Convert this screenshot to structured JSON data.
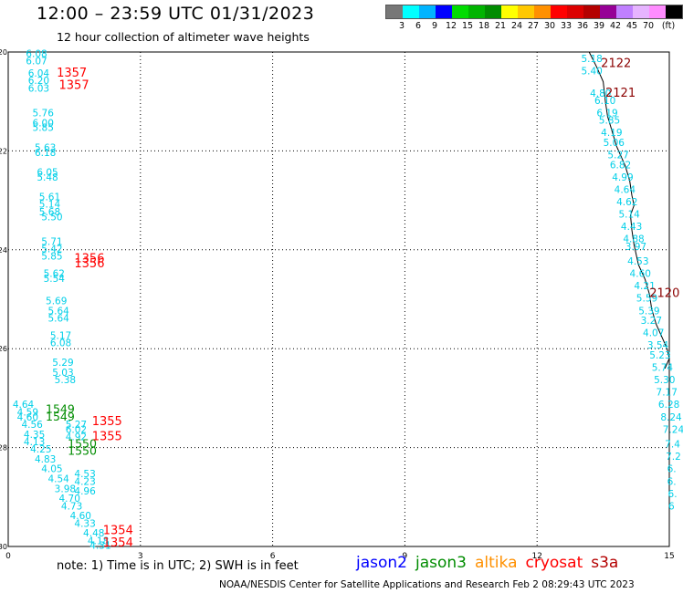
{
  "title": "12:00 – 23:59 UTC 01/31/2023",
  "subtitle": "12 hour collection of altimeter wave heights",
  "legend": {
    "colors": [
      "#777777",
      "#00ffff",
      "#00b4ff",
      "#0000ff",
      "#00dc00",
      "#00b400",
      "#008c00",
      "#ffff00",
      "#ffc800",
      "#ff9000",
      "#ff0000",
      "#dc0000",
      "#b40000",
      "#960096",
      "#c080ff",
      "#e6b4ff",
      "#ff8cff",
      "#000000"
    ],
    "labels": [
      "3",
      "6",
      "9",
      "12",
      "15",
      "18",
      "21",
      "24",
      "27",
      "30",
      "33",
      "36",
      "39",
      "42",
      "45",
      "70",
      "(ft)"
    ]
  },
  "axes": {
    "x_ticks": [
      "0",
      "3",
      "6",
      "9",
      "12",
      "15"
    ],
    "y_ticks": [
      "-20",
      "-22",
      "-24",
      "-26",
      "-28",
      "-30"
    ],
    "x_range": [
      0,
      15
    ],
    "y_range": [
      -20,
      -30
    ]
  },
  "track_labels": [
    {
      "text": "1357",
      "x": 1.1,
      "y": -20.5
    },
    {
      "text": "1357",
      "x": 1.15,
      "y": -20.75
    },
    {
      "text": "1356",
      "x": 1.5,
      "y": -24.25
    },
    {
      "text": "1356",
      "x": 1.5,
      "y": -24.35
    },
    {
      "text": "1355",
      "x": 1.9,
      "y": -27.55
    },
    {
      "text": "1355",
      "x": 1.9,
      "y": -27.85
    },
    {
      "text": "1354",
      "x": 2.15,
      "y": -29.75
    },
    {
      "text": "1354",
      "x": 2.15,
      "y": -30.0
    },
    {
      "text": "2122",
      "x": 13.45,
      "y": -20.3
    },
    {
      "text": "2121",
      "x": 13.55,
      "y": -20.9
    },
    {
      "text": "2120",
      "x": 14.55,
      "y": -24.95
    }
  ],
  "green_labels": [
    {
      "text": "1549",
      "x": 0.85,
      "y": -27.3
    },
    {
      "text": "1549",
      "x": 0.85,
      "y": -27.45
    },
    {
      "text": "1550",
      "x": 1.35,
      "y": -28.0
    },
    {
      "text": "1550",
      "x": 1.35,
      "y": -28.15
    }
  ],
  "swh_values": [
    {
      "text": "6.08",
      "x": 0.4,
      "y": -20.1
    },
    {
      "text": "6.07",
      "x": 0.4,
      "y": -20.25
    },
    {
      "text": "6.04",
      "x": 0.45,
      "y": -20.5
    },
    {
      "text": "6.20",
      "x": 0.45,
      "y": -20.65
    },
    {
      "text": "6.03",
      "x": 0.45,
      "y": -20.8
    },
    {
      "text": "5.76",
      "x": 0.55,
      "y": -21.3
    },
    {
      "text": "6.00",
      "x": 0.55,
      "y": -21.5
    },
    {
      "text": "5.85",
      "x": 0.55,
      "y": -21.6
    },
    {
      "text": "5.63",
      "x": 0.6,
      "y": -22.0
    },
    {
      "text": "6.18",
      "x": 0.6,
      "y": -22.1
    },
    {
      "text": "6.05",
      "x": 0.65,
      "y": -22.5
    },
    {
      "text": "5.48",
      "x": 0.65,
      "y": -22.6
    },
    {
      "text": "5.61",
      "x": 0.7,
      "y": -23.0
    },
    {
      "text": "5.14",
      "x": 0.7,
      "y": -23.15
    },
    {
      "text": "5.68",
      "x": 0.7,
      "y": -23.3
    },
    {
      "text": "5.50",
      "x": 0.75,
      "y": -23.4
    },
    {
      "text": "5.71",
      "x": 0.75,
      "y": -23.9
    },
    {
      "text": "5.42",
      "x": 0.75,
      "y": -24.05
    },
    {
      "text": "5.85",
      "x": 0.75,
      "y": -24.2
    },
    {
      "text": "5.62",
      "x": 0.8,
      "y": -24.55
    },
    {
      "text": "5.54",
      "x": 0.8,
      "y": -24.65
    },
    {
      "text": "5.69",
      "x": 0.85,
      "y": -25.1
    },
    {
      "text": "5.64",
      "x": 0.9,
      "y": -25.3
    },
    {
      "text": "5.64",
      "x": 0.9,
      "y": -25.45
    },
    {
      "text": "5.17",
      "x": 0.95,
      "y": -25.8
    },
    {
      "text": "6.08",
      "x": 0.95,
      "y": -25.95
    },
    {
      "text": "5.29",
      "x": 1.0,
      "y": -26.35
    },
    {
      "text": "5.03",
      "x": 1.0,
      "y": -26.55
    },
    {
      "text": "5.38",
      "x": 1.05,
      "y": -26.7
    },
    {
      "text": "4.64",
      "x": 0.1,
      "y": -27.2
    },
    {
      "text": "4.59",
      "x": 0.2,
      "y": -27.35
    },
    {
      "text": "4.60",
      "x": 0.2,
      "y": -27.45
    },
    {
      "text": "4.56",
      "x": 0.3,
      "y": -27.6
    },
    {
      "text": "4.35",
      "x": 0.35,
      "y": -27.8
    },
    {
      "text": "4.13",
      "x": 0.35,
      "y": -27.95
    },
    {
      "text": "5.27",
      "x": 1.3,
      "y": -27.6
    },
    {
      "text": "6.02",
      "x": 1.3,
      "y": -27.7
    },
    {
      "text": "4.92",
      "x": 1.3,
      "y": -27.85
    },
    {
      "text": "4.25",
      "x": 0.5,
      "y": -28.1
    },
    {
      "text": "4.83",
      "x": 0.6,
      "y": -28.3
    },
    {
      "text": "4.05",
      "x": 0.75,
      "y": -28.5
    },
    {
      "text": "4.53",
      "x": 1.5,
      "y": -28.6
    },
    {
      "text": "4.54",
      "x": 0.9,
      "y": -28.7
    },
    {
      "text": "4.23",
      "x": 1.5,
      "y": -28.75
    },
    {
      "text": "3.98",
      "x": 1.05,
      "y": -28.9
    },
    {
      "text": "4.96",
      "x": 1.5,
      "y": -28.95
    },
    {
      "text": "4.70",
      "x": 1.15,
      "y": -29.1
    },
    {
      "text": "4.73",
      "x": 1.2,
      "y": -29.25
    },
    {
      "text": "4.60",
      "x": 1.4,
      "y": -29.45
    },
    {
      "text": "4.33",
      "x": 1.5,
      "y": -29.6
    },
    {
      "text": "4.48",
      "x": 1.7,
      "y": -29.8
    },
    {
      "text": "4.18",
      "x": 1.8,
      "y": -29.95
    },
    {
      "text": "4.31",
      "x": 1.85,
      "y": -30.05
    },
    {
      "text": "5.18",
      "x": 13.0,
      "y": -20.2
    },
    {
      "text": "5.40",
      "x": 13.0,
      "y": -20.45
    },
    {
      "text": "4.80",
      "x": 13.2,
      "y": -20.9
    },
    {
      "text": "6.10",
      "x": 13.3,
      "y": -21.05
    },
    {
      "text": "6.19",
      "x": 13.35,
      "y": -21.3
    },
    {
      "text": "5.85",
      "x": 13.4,
      "y": -21.45
    },
    {
      "text": "4.19",
      "x": 13.45,
      "y": -21.7
    },
    {
      "text": "5.06",
      "x": 13.5,
      "y": -21.9
    },
    {
      "text": "5.27",
      "x": 13.6,
      "y": -22.15
    },
    {
      "text": "6.82",
      "x": 13.65,
      "y": -22.35
    },
    {
      "text": "4.99",
      "x": 13.7,
      "y": -22.6
    },
    {
      "text": "4.64",
      "x": 13.75,
      "y": -22.85
    },
    {
      "text": "4.62",
      "x": 13.8,
      "y": -23.1
    },
    {
      "text": "5.14",
      "x": 13.85,
      "y": -23.35
    },
    {
      "text": "4.43",
      "x": 13.9,
      "y": -23.6
    },
    {
      "text": "4.88",
      "x": 13.95,
      "y": -23.85
    },
    {
      "text": "3.97",
      "x": 14.0,
      "y": -24.0
    },
    {
      "text": "4.53",
      "x": 14.05,
      "y": -24.3
    },
    {
      "text": "4.60",
      "x": 14.1,
      "y": -24.55
    },
    {
      "text": "4.21",
      "x": 14.2,
      "y": -24.8
    },
    {
      "text": "5.59",
      "x": 14.25,
      "y": -25.05
    },
    {
      "text": "5.39",
      "x": 14.3,
      "y": -25.3
    },
    {
      "text": "3.27",
      "x": 14.35,
      "y": -25.5
    },
    {
      "text": "4.07",
      "x": 14.4,
      "y": -25.75
    },
    {
      "text": "3.54",
      "x": 14.5,
      "y": -26.0
    },
    {
      "text": "5.23",
      "x": 14.55,
      "y": -26.2
    },
    {
      "text": "5.74",
      "x": 14.6,
      "y": -26.45
    },
    {
      "text": "5.30",
      "x": 14.65,
      "y": -26.7
    },
    {
      "text": "7.17",
      "x": 14.7,
      "y": -26.95
    },
    {
      "text": "6.28",
      "x": 14.75,
      "y": -27.2
    },
    {
      "text": "8.24",
      "x": 14.8,
      "y": -27.45
    },
    {
      "text": "7.24",
      "x": 14.85,
      "y": -27.7
    },
    {
      "text": "7.4",
      "x": 14.9,
      "y": -28.0
    },
    {
      "text": "7.2",
      "x": 14.92,
      "y": -28.25
    },
    {
      "text": "6.",
      "x": 14.95,
      "y": -28.5
    },
    {
      "text": "6.",
      "x": 14.95,
      "y": -28.75
    },
    {
      "text": "6.",
      "x": 14.97,
      "y": -29.0
    },
    {
      "text": "6",
      "x": 14.98,
      "y": -29.25
    }
  ],
  "coastline": [
    [
      13.18,
      -20.0
    ],
    [
      13.35,
      -20.3
    ],
    [
      13.5,
      -20.6
    ],
    [
      13.55,
      -21.0
    ],
    [
      13.6,
      -21.3
    ],
    [
      13.7,
      -21.6
    ],
    [
      13.8,
      -21.9
    ],
    [
      14.0,
      -22.3
    ],
    [
      14.1,
      -22.6
    ],
    [
      14.15,
      -22.9
    ],
    [
      14.2,
      -23.1
    ],
    [
      14.12,
      -23.3
    ],
    [
      14.15,
      -23.6
    ],
    [
      14.2,
      -23.9
    ],
    [
      14.3,
      -24.3
    ],
    [
      14.45,
      -24.6
    ],
    [
      14.55,
      -24.9
    ],
    [
      14.6,
      -25.2
    ],
    [
      14.7,
      -25.5
    ],
    [
      14.85,
      -25.8
    ],
    [
      14.95,
      -26.0
    ],
    [
      15.0,
      -26.2
    ],
    [
      14.9,
      -26.4
    ]
  ],
  "note": "note:  1) Time is in UTC; 2) SWH is in feet",
  "satellites": [
    {
      "text": "jason2",
      "color": "#0000ff"
    },
    {
      "text": "jason3",
      "color": "#008c00"
    },
    {
      "text": "altika",
      "color": "#ff9000"
    },
    {
      "text": "cryosat",
      "color": "#ff0000"
    },
    {
      "text": "s3a",
      "color": "#b40000"
    }
  ],
  "credit": "NOAA/NESDIS Center for Satellite Applications and Research    Feb  2 08:29:43 UTC 2023"
}
